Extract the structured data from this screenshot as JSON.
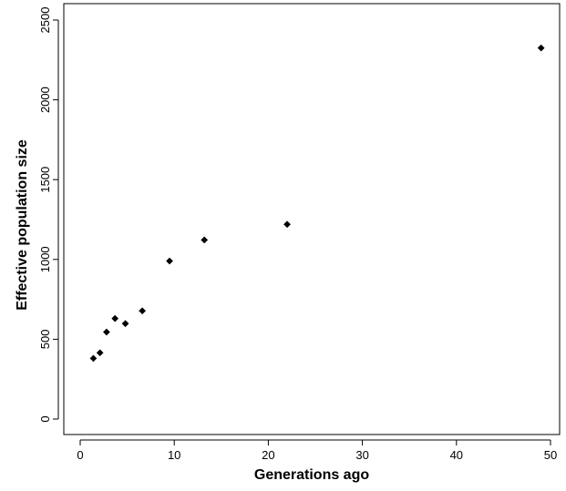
{
  "chart_data": {
    "type": "scatter",
    "title": "",
    "xlabel": "Generations ago",
    "ylabel": "Effective population size",
    "xlim": [
      0,
      50
    ],
    "ylim": [
      0,
      2500
    ],
    "xticks": [
      0,
      10,
      20,
      30,
      40,
      50
    ],
    "yticks": [
      0,
      500,
      1000,
      1500,
      2000,
      2500
    ],
    "grid": false,
    "marker": "diamond",
    "marker_color": "#000000",
    "points": [
      {
        "x": 1.4,
        "y": 380
      },
      {
        "x": 2.1,
        "y": 415
      },
      {
        "x": 2.8,
        "y": 545
      },
      {
        "x": 3.7,
        "y": 630
      },
      {
        "x": 4.8,
        "y": 598
      },
      {
        "x": 6.6,
        "y": 678
      },
      {
        "x": 9.5,
        "y": 990
      },
      {
        "x": 13.2,
        "y": 1122
      },
      {
        "x": 22.0,
        "y": 1220
      },
      {
        "x": 49.0,
        "y": 2325
      }
    ]
  }
}
